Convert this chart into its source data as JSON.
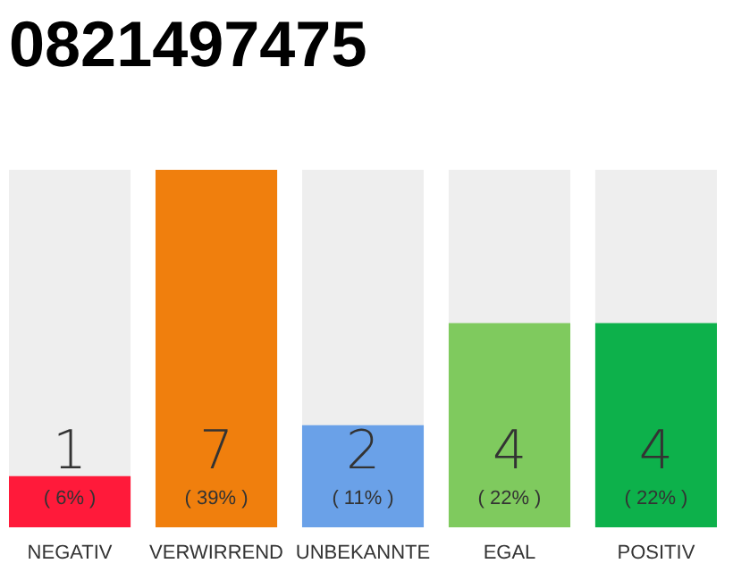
{
  "chart_data": {
    "type": "bar",
    "title": "0821497475",
    "categories": [
      "NEGATIV",
      "VERWIRREND",
      "UNBEKANNTE",
      "EGAL",
      "POSITIV"
    ],
    "values": [
      1,
      7,
      2,
      4,
      4
    ],
    "colors": [
      "#ff1a3a",
      "#f07f0d",
      "#6aa1e8",
      "#7fca5e",
      "#0db14b"
    ],
    "data_labels": true,
    "tick_labels": "x",
    "annotations": [
      "( 6% )",
      "( 39% )",
      "( 11% )",
      "( 22% )",
      "( 22% )"
    ]
  }
}
